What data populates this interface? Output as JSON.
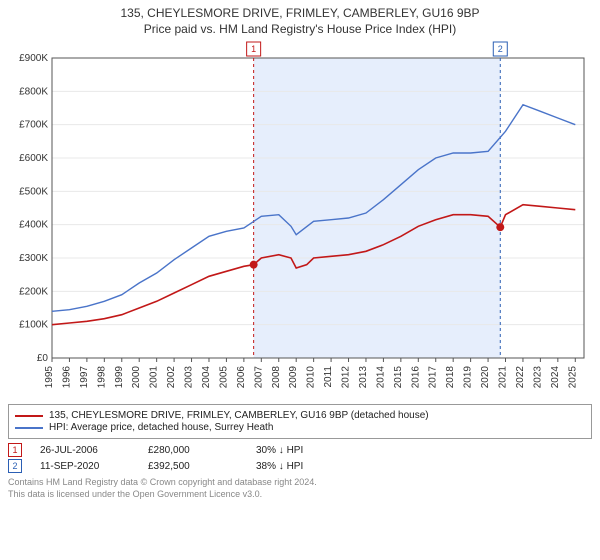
{
  "title_main": "135, CHEYLESMORE DRIVE, FRIMLEY, CAMBERLEY, GU16 9BP",
  "title_sub": "Price paid vs. HM Land Registry's House Price Index (HPI)",
  "chart": {
    "type": "line",
    "background_color": "#ffffff",
    "plot_bg": "#ffffff",
    "axes": {
      "x": {
        "min": 1995,
        "max": 2025.5,
        "ticks": [
          1995,
          1996,
          1997,
          1998,
          1999,
          2000,
          2001,
          2002,
          2003,
          2004,
          2005,
          2006,
          2007,
          2008,
          2009,
          2010,
          2011,
          2012,
          2013,
          2014,
          2015,
          2016,
          2017,
          2018,
          2019,
          2020,
          2021,
          2022,
          2023,
          2024,
          2025
        ],
        "tick_label_rotation": -90,
        "tick_color": "#555",
        "label_fontsize": 10
      },
      "y": {
        "min": 0,
        "max": 900000,
        "ticks": [
          0,
          100000,
          200000,
          300000,
          400000,
          500000,
          600000,
          700000,
          800000,
          900000
        ],
        "tick_labels": [
          "£0",
          "£100K",
          "£200K",
          "£300K",
          "£400K",
          "£500K",
          "£600K",
          "£700K",
          "£800K",
          "£900K"
        ],
        "grid": true,
        "grid_color": "#e8e8e8",
        "tick_color": "#555",
        "label_fontsize": 10
      }
    },
    "shaded_region": {
      "x_start": 2006.56,
      "x_end": 2020.7,
      "color": "#e6eefc"
    },
    "vlines": [
      {
        "x": 2006.56,
        "color": "#c21818",
        "dash": true,
        "badge": "1",
        "badge_color": "#c21818"
      },
      {
        "x": 2020.7,
        "color": "#2b5fb4",
        "dash": true,
        "badge": "2",
        "badge_color": "#2b5fb4"
      }
    ],
    "series": [
      {
        "name": "property_price",
        "color": "#c21818",
        "width": 1.6,
        "data": [
          [
            1995,
            100000
          ],
          [
            1996,
            105000
          ],
          [
            1997,
            110000
          ],
          [
            1998,
            118000
          ],
          [
            1999,
            130000
          ],
          [
            2000,
            150000
          ],
          [
            2001,
            170000
          ],
          [
            2002,
            195000
          ],
          [
            2003,
            220000
          ],
          [
            2004,
            245000
          ],
          [
            2005,
            260000
          ],
          [
            2006,
            275000
          ],
          [
            2006.56,
            280000
          ],
          [
            2007,
            300000
          ],
          [
            2008,
            310000
          ],
          [
            2008.7,
            300000
          ],
          [
            2009,
            270000
          ],
          [
            2009.6,
            280000
          ],
          [
            2010,
            300000
          ],
          [
            2011,
            305000
          ],
          [
            2012,
            310000
          ],
          [
            2013,
            320000
          ],
          [
            2014,
            340000
          ],
          [
            2015,
            365000
          ],
          [
            2016,
            395000
          ],
          [
            2017,
            415000
          ],
          [
            2018,
            430000
          ],
          [
            2019,
            430000
          ],
          [
            2020,
            425000
          ],
          [
            2020.7,
            392500
          ],
          [
            2021,
            430000
          ],
          [
            2022,
            460000
          ],
          [
            2023,
            455000
          ],
          [
            2024,
            450000
          ],
          [
            2025,
            445000
          ]
        ]
      },
      {
        "name": "hpi",
        "color": "#4a74c9",
        "width": 1.4,
        "data": [
          [
            1995,
            140000
          ],
          [
            1996,
            145000
          ],
          [
            1997,
            155000
          ],
          [
            1998,
            170000
          ],
          [
            1999,
            190000
          ],
          [
            2000,
            225000
          ],
          [
            2001,
            255000
          ],
          [
            2002,
            295000
          ],
          [
            2003,
            330000
          ],
          [
            2004,
            365000
          ],
          [
            2005,
            380000
          ],
          [
            2006,
            390000
          ],
          [
            2007,
            425000
          ],
          [
            2008,
            430000
          ],
          [
            2008.7,
            395000
          ],
          [
            2009,
            370000
          ],
          [
            2010,
            410000
          ],
          [
            2011,
            415000
          ],
          [
            2012,
            420000
          ],
          [
            2013,
            435000
          ],
          [
            2014,
            475000
          ],
          [
            2015,
            520000
          ],
          [
            2016,
            565000
          ],
          [
            2017,
            600000
          ],
          [
            2018,
            615000
          ],
          [
            2019,
            615000
          ],
          [
            2020,
            620000
          ],
          [
            2021,
            680000
          ],
          [
            2022,
            760000
          ],
          [
            2023,
            740000
          ],
          [
            2024,
            720000
          ],
          [
            2025,
            700000
          ]
        ]
      }
    ],
    "markers": [
      {
        "x": 2006.56,
        "y": 280000,
        "color": "#c21818",
        "r": 4
      },
      {
        "x": 2020.7,
        "y": 392500,
        "color": "#c21818",
        "r": 4
      }
    ]
  },
  "legend": {
    "items": [
      {
        "label": "135, CHEYLESMORE DRIVE, FRIMLEY, CAMBERLEY, GU16 9BP (detached house)",
        "color": "#c21818"
      },
      {
        "label": "HPI: Average price, detached house, Surrey Heath",
        "color": "#4a74c9"
      }
    ]
  },
  "events": [
    {
      "badge": "1",
      "badge_color": "#c21818",
      "date": "26-JUL-2006",
      "price": "£280,000",
      "delta": "30% ↓ HPI"
    },
    {
      "badge": "2",
      "badge_color": "#2b5fb4",
      "date": "11-SEP-2020",
      "price": "£392,500",
      "delta": "38% ↓ HPI"
    }
  ],
  "credit_line1": "Contains HM Land Registry data © Crown copyright and database right 2024.",
  "credit_line2": "This data is licensed under the Open Government Licence v3.0."
}
